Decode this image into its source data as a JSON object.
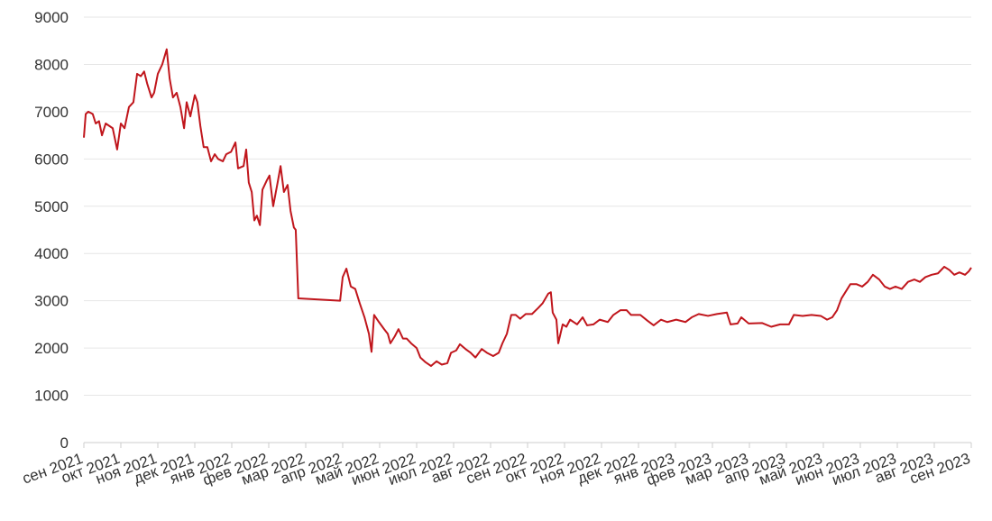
{
  "chart_data": {
    "type": "line",
    "xlim": [
      0,
      24
    ],
    "xticks": [
      {
        "value": 0,
        "label": "сен 2021"
      },
      {
        "value": 1,
        "label": "окт 2021"
      },
      {
        "value": 2,
        "label": "ноя 2021"
      },
      {
        "value": 3,
        "label": "дек 2021"
      },
      {
        "value": 4,
        "label": "янв 2022"
      },
      {
        "value": 5,
        "label": "фев 2022"
      },
      {
        "value": 6,
        "label": "мар 2022"
      },
      {
        "value": 7,
        "label": "апр 2022"
      },
      {
        "value": 8,
        "label": "май 2022"
      },
      {
        "value": 9,
        "label": "июн 2022"
      },
      {
        "value": 10,
        "label": "июл 2022"
      },
      {
        "value": 11,
        "label": "авг 2022"
      },
      {
        "value": 12,
        "label": "сен 2022"
      },
      {
        "value": 13,
        "label": "окт 2022"
      },
      {
        "value": 14,
        "label": "ноя 2022"
      },
      {
        "value": 15,
        "label": "дек 2022"
      },
      {
        "value": 16,
        "label": "янв 2023"
      },
      {
        "value": 17,
        "label": "фев 2023"
      },
      {
        "value": 18,
        "label": "мар 2023"
      },
      {
        "value": 19,
        "label": "апр 2023"
      },
      {
        "value": 20,
        "label": "май 2023"
      },
      {
        "value": 21,
        "label": "июн 2023"
      },
      {
        "value": 22,
        "label": "июл 2023"
      },
      {
        "value": 23,
        "label": "авг 2023"
      },
      {
        "value": 24,
        "label": "сен 2023"
      }
    ],
    "ylim": [
      0,
      9000
    ],
    "yticks": [
      0,
      1000,
      2000,
      3000,
      4000,
      5000,
      6000,
      7000,
      8000,
      9000
    ],
    "grid": true,
    "series": [
      {
        "color": "#c0161c",
        "x": [
          0,
          0.05,
          0.12,
          0.24,
          0.32,
          0.41,
          0.49,
          0.59,
          0.78,
          0.9,
          1.0,
          1.1,
          1.22,
          1.34,
          1.44,
          1.54,
          1.63,
          1.71,
          1.83,
          1.9,
          2.0,
          2.12,
          2.24,
          2.32,
          2.41,
          2.51,
          2.61,
          2.71,
          2.78,
          2.88,
          3.0,
          3.07,
          3.15,
          3.24,
          3.34,
          3.44,
          3.54,
          3.63,
          3.76,
          3.85,
          3.98,
          4.1,
          4.17,
          4.32,
          4.39,
          4.46,
          4.54,
          4.61,
          4.68,
          4.76,
          4.83,
          4.95,
          5.02,
          5.12,
          5.24,
          5.32,
          5.41,
          5.51,
          5.59,
          5.68,
          5.73,
          5.8,
          6.93,
          7.0,
          7.1,
          7.22,
          7.34,
          7.46,
          7.59,
          7.71,
          7.78,
          7.85,
          7.98,
          8.12,
          8.22,
          8.29,
          8.41,
          8.51,
          8.63,
          8.73,
          8.85,
          9.0,
          9.1,
          9.24,
          9.39,
          9.54,
          9.68,
          9.83,
          9.93,
          10.07,
          10.17,
          10.32,
          10.46,
          10.59,
          10.76,
          10.9,
          11.07,
          11.22,
          11.32,
          11.44,
          11.56,
          11.68,
          11.8,
          11.95,
          12.12,
          12.29,
          12.41,
          12.56,
          12.63,
          12.68,
          12.78,
          12.83,
          12.95,
          13.05,
          13.15,
          13.34,
          13.49,
          13.61,
          13.78,
          13.95,
          14.17,
          14.32,
          14.51,
          14.68,
          14.8,
          15.05,
          15.24,
          15.41,
          15.61,
          15.78,
          16.02,
          16.27,
          16.44,
          16.63,
          16.88,
          17.12,
          17.39,
          17.49,
          17.68,
          17.78,
          17.98,
          18.34,
          18.59,
          18.83,
          19.07,
          19.2,
          19.44,
          19.68,
          19.93,
          20.1,
          20.24,
          20.37,
          20.49,
          20.61,
          20.73,
          20.9,
          21.05,
          21.2,
          21.34,
          21.51,
          21.66,
          21.8,
          21.95,
          22.12,
          22.29,
          22.46,
          22.61,
          22.76,
          22.93,
          23.1,
          23.27,
          23.41,
          23.54,
          23.68,
          23.83,
          23.93,
          24.0
        ],
        "values": [
          6450,
          6950,
          7000,
          6950,
          6750,
          6800,
          6500,
          6750,
          6650,
          6200,
          6750,
          6650,
          7100,
          7200,
          7800,
          7750,
          7850,
          7600,
          7300,
          7400,
          7800,
          8000,
          8320,
          7700,
          7300,
          7400,
          7100,
          6650,
          7200,
          6900,
          7350,
          7200,
          6700,
          6250,
          6250,
          5950,
          6100,
          6000,
          5950,
          6100,
          6150,
          6350,
          5800,
          5850,
          6200,
          5500,
          5300,
          4700,
          4800,
          4600,
          5350,
          5550,
          5650,
          5000,
          5500,
          5850,
          5300,
          5450,
          4900,
          4550,
          4500,
          3050,
          3000,
          3500,
          3680,
          3300,
          3250,
          2950,
          2650,
          2300,
          1920,
          2700,
          2550,
          2400,
          2300,
          2100,
          2250,
          2400,
          2200,
          2200,
          2100,
          2000,
          1800,
          1700,
          1620,
          1720,
          1650,
          1680,
          1900,
          1950,
          2080,
          1980,
          1900,
          1800,
          1980,
          1900,
          1830,
          1900,
          2100,
          2300,
          2700,
          2700,
          2620,
          2720,
          2720,
          2850,
          2950,
          3150,
          3180,
          2750,
          2600,
          2100,
          2500,
          2450,
          2600,
          2500,
          2650,
          2480,
          2500,
          2600,
          2550,
          2700,
          2800,
          2800,
          2700,
          2700,
          2580,
          2480,
          2600,
          2550,
          2600,
          2550,
          2650,
          2720,
          2680,
          2720,
          2750,
          2500,
          2520,
          2650,
          2520,
          2530,
          2450,
          2500,
          2500,
          2700,
          2680,
          2700,
          2680,
          2600,
          2650,
          2800,
          3050,
          3200,
          3350,
          3350,
          3300,
          3400,
          3550,
          3450,
          3300,
          3250,
          3300,
          3250,
          3400,
          3450,
          3400,
          3500,
          3550,
          3580,
          3720,
          3650,
          3550,
          3600,
          3550,
          3620,
          3700
        ]
      }
    ]
  }
}
